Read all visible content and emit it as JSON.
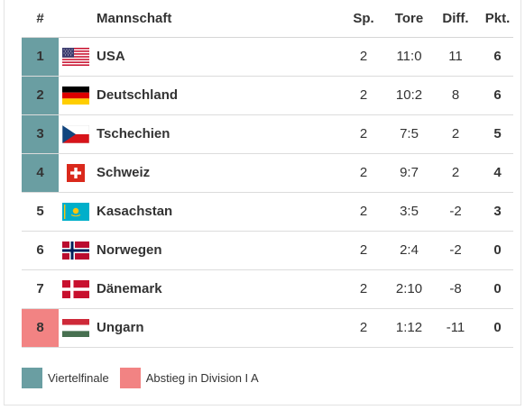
{
  "header": {
    "rank": "#",
    "team": "Mannschaft",
    "games": "Sp.",
    "goals": "Tore",
    "diff": "Diff.",
    "points": "Pkt."
  },
  "rows": [
    {
      "rank": "1",
      "team": "USA",
      "games": "2",
      "goals": "11:0",
      "diff": "11",
      "points": "6",
      "flag": "usa-flag-icon",
      "status": "viertelfinale"
    },
    {
      "rank": "2",
      "team": "Deutschland",
      "games": "2",
      "goals": "10:2",
      "diff": "8",
      "points": "6",
      "flag": "germany-flag-icon",
      "status": "viertelfinale"
    },
    {
      "rank": "3",
      "team": "Tschechien",
      "games": "2",
      "goals": "7:5",
      "diff": "2",
      "points": "5",
      "flag": "czech-flag-icon",
      "status": "viertelfinale"
    },
    {
      "rank": "4",
      "team": "Schweiz",
      "games": "2",
      "goals": "9:7",
      "diff": "2",
      "points": "4",
      "flag": "switzerland-flag-icon",
      "status": "viertelfinale"
    },
    {
      "rank": "5",
      "team": "Kasachstan",
      "games": "2",
      "goals": "3:5",
      "diff": "-2",
      "points": "3",
      "flag": "kazakhstan-flag-icon",
      "status": "none"
    },
    {
      "rank": "6",
      "team": "Norwegen",
      "games": "2",
      "goals": "2:4",
      "diff": "-2",
      "points": "0",
      "flag": "norway-flag-icon",
      "status": "none"
    },
    {
      "rank": "7",
      "team": "Dänemark",
      "games": "2",
      "goals": "2:10",
      "diff": "-8",
      "points": "0",
      "flag": "denmark-flag-icon",
      "status": "none"
    },
    {
      "rank": "8",
      "team": "Ungarn",
      "games": "2",
      "goals": "1:12",
      "diff": "-11",
      "points": "0",
      "flag": "hungary-flag-icon",
      "status": "abstieg"
    }
  ],
  "legend": {
    "viertelfinale": "Viertelfinale",
    "abstieg": "Abstieg in Division I A"
  },
  "colors": {
    "viertelfinale": "#6a9ea2",
    "abstieg": "#f28383"
  }
}
